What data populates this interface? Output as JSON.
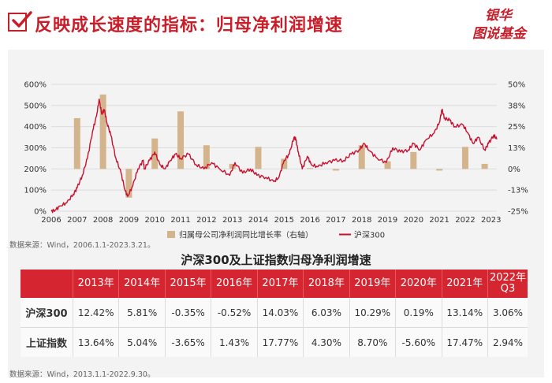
{
  "header": {
    "title": "反映成长速度的指标：归母净利润增速",
    "brand_top": "银华",
    "brand_bottom": "图说基金"
  },
  "colors": {
    "accent_red": "#c81e2a",
    "line_red": "#c8102e",
    "bar_tan": "#d4b48c",
    "table_header": "#d42530"
  },
  "source_chart": "数据来源：Wind，2006.1.1-2023.3.21。",
  "source_table": "数据来源：Wind，2013.1.1-2022.9.30。",
  "table": {
    "title": "沪深300及上证指数归母净利润增速",
    "headers": [
      "",
      "2013年",
      "2014年",
      "2015年",
      "2016年",
      "2017年",
      "2018年",
      "2019年",
      "2020年",
      "2021年",
      "2022年Q3"
    ],
    "rows": [
      {
        "label": "沪深300",
        "values": [
          "12.42%",
          "5.81%",
          "-0.35%",
          "-0.52%",
          "14.03%",
          "6.03%",
          "10.29%",
          "0.19%",
          "13.14%",
          "3.06%"
        ]
      },
      {
        "label": "上证指数",
        "values": [
          "13.64%",
          "5.04%",
          "-3.65%",
          "1.43%",
          "17.77%",
          "4.30%",
          "8.70%",
          "-5.60%",
          "17.47%",
          "2.94%"
        ]
      }
    ]
  },
  "chart_data": {
    "type": "bar",
    "secondary_type": "line",
    "x_range": [
      2006,
      2023.22
    ],
    "x_ticks": [
      "2006",
      "2007",
      "2008",
      "2009",
      "2010",
      "2011",
      "2012",
      "2013",
      "2014",
      "2015",
      "2016",
      "2017",
      "2018",
      "2019",
      "2020",
      "2021",
      "2022",
      "2023"
    ],
    "y_left": {
      "range": [
        0,
        600
      ],
      "ticks": [
        "0%",
        "100%",
        "200%",
        "300%",
        "400%",
        "500%",
        "600%"
      ]
    },
    "y_right": {
      "range": [
        -25,
        50
      ],
      "ticks": [
        "-25%",
        "-13%",
        "0%",
        "13%",
        "25%",
        "38%",
        "50%"
      ]
    },
    "grid": true,
    "legend_position": "bottom",
    "bar_series": {
      "name": "归属母公司净利润同比增长率（右轴）",
      "axis": "right",
      "x": [
        2007.0,
        2008.0,
        2009.0,
        2010.0,
        2011.0,
        2012.0,
        2013.0,
        2014.0,
        2015.0,
        2016.0,
        2017.0,
        2018.0,
        2019.0,
        2020.0,
        2021.0,
        2022.0,
        2022.75
      ],
      "values": [
        30,
        44,
        -17,
        18,
        34,
        14,
        3,
        13,
        6,
        0.5,
        -1,
        14,
        4.5,
        10,
        -1,
        13,
        3
      ]
    },
    "line_series": {
      "name": "沪深300",
      "axis": "left",
      "points": [
        [
          2006.0,
          0
        ],
        [
          2006.15,
          5
        ],
        [
          2006.35,
          25
        ],
        [
          2006.6,
          40
        ],
        [
          2006.85,
          80
        ],
        [
          2007.0,
          110
        ],
        [
          2007.2,
          170
        ],
        [
          2007.4,
          250
        ],
        [
          2007.6,
          380
        ],
        [
          2007.75,
          450
        ],
        [
          2007.85,
          530
        ],
        [
          2007.95,
          460
        ],
        [
          2008.05,
          480
        ],
        [
          2008.15,
          420
        ],
        [
          2008.3,
          360
        ],
        [
          2008.5,
          250
        ],
        [
          2008.7,
          180
        ],
        [
          2008.85,
          100
        ],
        [
          2008.95,
          70
        ],
        [
          2009.15,
          120
        ],
        [
          2009.35,
          200
        ],
        [
          2009.55,
          240
        ],
        [
          2009.6,
          200
        ],
        [
          2009.8,
          240
        ],
        [
          2010.0,
          280
        ],
        [
          2010.2,
          220
        ],
        [
          2010.4,
          200
        ],
        [
          2010.6,
          240
        ],
        [
          2010.8,
          270
        ],
        [
          2011.0,
          250
        ],
        [
          2011.3,
          270
        ],
        [
          2011.6,
          220
        ],
        [
          2011.9,
          200
        ],
        [
          2012.2,
          230
        ],
        [
          2012.5,
          200
        ],
        [
          2012.9,
          170
        ],
        [
          2013.1,
          230
        ],
        [
          2013.4,
          180
        ],
        [
          2013.7,
          200
        ],
        [
          2013.95,
          170
        ],
        [
          2014.3,
          160
        ],
        [
          2014.6,
          140
        ],
        [
          2014.8,
          160
        ],
        [
          2015.0,
          240
        ],
        [
          2015.2,
          270
        ],
        [
          2015.38,
          350
        ],
        [
          2015.45,
          340
        ],
        [
          2015.55,
          280
        ],
        [
          2015.7,
          200
        ],
        [
          2015.9,
          260
        ],
        [
          2016.05,
          220
        ],
        [
          2016.3,
          210
        ],
        [
          2016.6,
          230
        ],
        [
          2016.95,
          240
        ],
        [
          2017.3,
          240
        ],
        [
          2017.6,
          270
        ],
        [
          2017.9,
          290
        ],
        [
          2018.1,
          320
        ],
        [
          2018.3,
          285
        ],
        [
          2018.6,
          250
        ],
        [
          2018.95,
          230
        ],
        [
          2019.2,
          300
        ],
        [
          2019.5,
          280
        ],
        [
          2019.8,
          290
        ],
        [
          2020.0,
          320
        ],
        [
          2020.25,
          290
        ],
        [
          2020.5,
          340
        ],
        [
          2020.8,
          370
        ],
        [
          2021.0,
          420
        ],
        [
          2021.1,
          480
        ],
        [
          2021.2,
          440
        ],
        [
          2021.4,
          430
        ],
        [
          2021.6,
          400
        ],
        [
          2021.9,
          410
        ],
        [
          2022.1,
          370
        ],
        [
          2022.3,
          320
        ],
        [
          2022.5,
          350
        ],
        [
          2022.75,
          290
        ],
        [
          2022.9,
          320
        ],
        [
          2023.1,
          360
        ],
        [
          2023.22,
          340
        ]
      ]
    }
  }
}
